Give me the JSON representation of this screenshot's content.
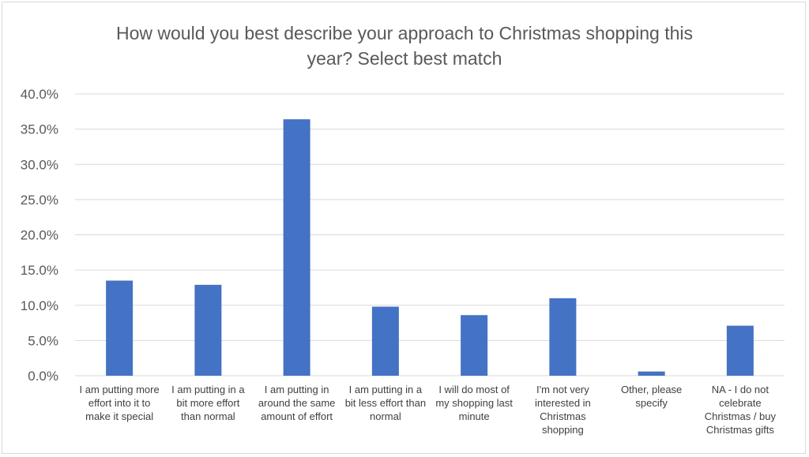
{
  "chart_data": {
    "type": "bar",
    "title_lines": [
      "How would you best describe your approach to Christmas shopping this",
      "year? Select best match"
    ],
    "categories": [
      [
        "I am putting more",
        "effort into it to",
        "make it special"
      ],
      [
        "I am putting in a",
        "bit more effort",
        "than normal"
      ],
      [
        "I am putting in",
        "around the same",
        "amount of effort"
      ],
      [
        "I am putting in a",
        "bit less effort than",
        "normal"
      ],
      [
        "I will do most of",
        "my shopping last",
        "minute"
      ],
      [
        "I'm not very",
        "interested in",
        "Christmas",
        "shopping"
      ],
      [
        "Other, please",
        "specify"
      ],
      [
        "NA - I do not",
        "celebrate",
        "Christmas / buy",
        "Christmas gifts"
      ]
    ],
    "values": [
      13.5,
      12.9,
      36.4,
      9.8,
      8.6,
      11.0,
      0.6,
      7.1
    ],
    "ylim": [
      0,
      40
    ],
    "yticks": [
      "0.0%",
      "5.0%",
      "10.0%",
      "15.0%",
      "20.0%",
      "25.0%",
      "30.0%",
      "35.0%",
      "40.0%"
    ],
    "grid": true,
    "bar_color": "#4472c4",
    "grid_color": "#d9d9d9"
  }
}
